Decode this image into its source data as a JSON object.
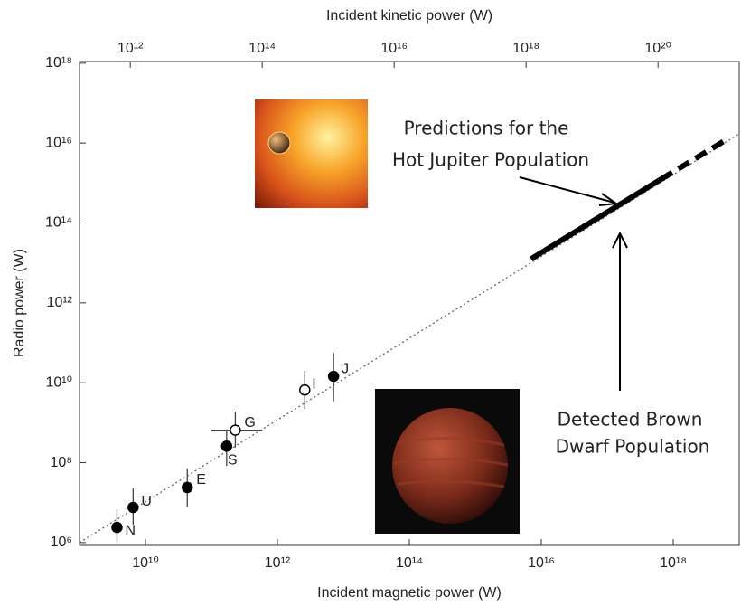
{
  "chart_data": {
    "type": "scatter",
    "xlabel": "Incident magnetic power (W)",
    "x2label": "Incident kinetic power (W)",
    "ylabel": "Radio power (W)",
    "xscale": "log",
    "yscale": "log",
    "xlim": [
      1000000000.0,
      1e+19
    ],
    "x2lim": [
      170000000000.0,
      1.7e+21
    ],
    "ylim": [
      850000,
      1.1e+18
    ],
    "xticks": [
      {
        "value": 10000000000.0,
        "label": "10¹⁰"
      },
      {
        "value": 1000000000000.0,
        "label": "10¹²"
      },
      {
        "value": 100000000000000.0,
        "label": "10¹⁴"
      },
      {
        "value": 1e+16,
        "label": "10¹⁶"
      },
      {
        "value": 1e+18,
        "label": "10¹⁸"
      }
    ],
    "x2ticks": [
      {
        "value": 1000000000000.0,
        "label": "10¹²"
      },
      {
        "value": 100000000000000.0,
        "label": "10¹⁴"
      },
      {
        "value": 1e+16,
        "label": "10¹⁶"
      },
      {
        "value": 1e+18,
        "label": "10¹⁸"
      },
      {
        "value": 1e+20,
        "label": "10²⁰"
      }
    ],
    "yticks": [
      {
        "value": 1000000.0,
        "label": "10⁶"
      },
      {
        "value": 100000000.0,
        "label": "10⁸"
      },
      {
        "value": 10000000000.0,
        "label": "10¹⁰"
      },
      {
        "value": 1000000000000.0,
        "label": "10¹²"
      },
      {
        "value": 100000000000000.0,
        "label": "10¹⁴"
      },
      {
        "value": 1e+16,
        "label": "10¹⁶"
      },
      {
        "value": 1e+18,
        "label": "10¹⁸"
      }
    ],
    "points": [
      {
        "label": "N",
        "x": 3700000000.0,
        "y": 2400000.0,
        "y_low": 1000000.0,
        "y_high": 6900000.0,
        "open": false
      },
      {
        "label": "U",
        "x": 6500000000.0,
        "y": 7600000.0,
        "y_low": 2800000.0,
        "y_high": 23000000.0,
        "open": false
      },
      {
        "label": "E",
        "x": 43000000000.0,
        "y": 24000000.0,
        "y_low": 8000000.0,
        "y_high": 72000000.0,
        "open": false
      },
      {
        "label": "S",
        "x": 170000000000.0,
        "y": 260000000.0,
        "y_low": 83000000.0,
        "y_high": 680000000.0,
        "open": false
      },
      {
        "label": "G",
        "x": 230000000000.0,
        "y": 650000000.0,
        "y_low": 240000000.0,
        "y_high": 1900000000.0,
        "x_low": 100000000000.0,
        "x_high": 590000000000.0,
        "open": true
      },
      {
        "label": "I",
        "x": 2600000000000.0,
        "y": 6600000000.0,
        "y_low": 2200000000.0,
        "y_high": 20000000000.0,
        "open": true
      },
      {
        "label": "J",
        "x": 7100000000000.0,
        "y": 14500000000.0,
        "y_low": 3400000000.0,
        "y_high": 56000000000.0,
        "open": false
      }
    ],
    "fit_line": {
      "x": [
        1000000000.0,
        1e+19
      ],
      "y": [
        1000000.0,
        1.7e+16
      ]
    },
    "hot_jupiter_solid": {
      "x": [
        7000000000000000.0,
        6.6e+17
      ],
      "y": [
        12600000000000.0,
        1260000000000000.0
      ]
    },
    "hot_jupiter_dashed": {
      "x": [
        6.6e+17,
        6.3e+18
      ],
      "y": [
        1260000000000000.0,
        1.2e+16
      ]
    },
    "annotations": {
      "hot_jupiter": [
        "Predictions for the",
        "Hot Jupiter Population"
      ],
      "brown_dwarf": [
        "Detected Brown",
        "Dwarf Population"
      ]
    }
  }
}
